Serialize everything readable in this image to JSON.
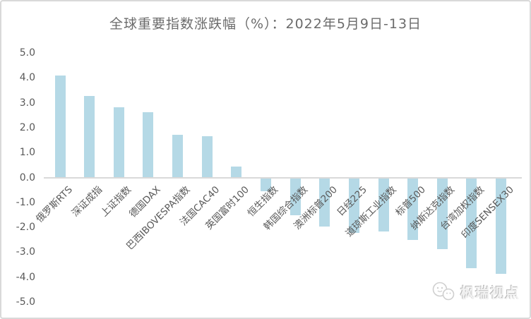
{
  "window": {
    "background": "#ffffff",
    "border_color": "#d9d9d9"
  },
  "chart_data": {
    "type": "bar",
    "title": "全球重要指数涨跌幅（%）：2022年5月9日-13日",
    "categories": [
      "俄罗斯RTS",
      "深证成指",
      "上证指数",
      "德国DAX",
      "巴西IBOVESPA指数",
      "法国CAC40",
      "英国富时100",
      "恒生指数",
      "韩国综合指数",
      "澳洲标普200",
      "日经225",
      "道琼斯工业指数",
      "标普500",
      "纳斯达克指数",
      "台湾加权指数",
      "印度SENSEX30"
    ],
    "values": [
      4.09,
      3.27,
      2.81,
      2.61,
      1.72,
      1.67,
      0.43,
      -0.51,
      -1.5,
      -1.93,
      -2.19,
      -2.13,
      -2.47,
      -2.84,
      -3.61,
      -3.84
    ],
    "xlabel": "",
    "ylabel": "",
    "ylim": [
      -5.0,
      5.0
    ],
    "yticks": [
      5.0,
      4.0,
      3.0,
      2.0,
      1.0,
      0.0,
      -1.0,
      -2.0,
      -3.0,
      -4.0,
      -5.0
    ],
    "ytick_labels": [
      "5.0",
      "4.0",
      "3.0",
      "2.0",
      "1.0",
      "0.0",
      "-1.0",
      "-2.0",
      "-3.0",
      "-4.0",
      "-5.0"
    ],
    "grid": "off",
    "legend_position": "none",
    "bar_color": "#b5d9e6",
    "axis_line_color": "#d9d9d9",
    "tick_text_color": "#595959",
    "title_color": "#6b6b6b"
  },
  "watermark": {
    "text": "枫瑞视点",
    "icon": "chat-bubbles-icon"
  }
}
